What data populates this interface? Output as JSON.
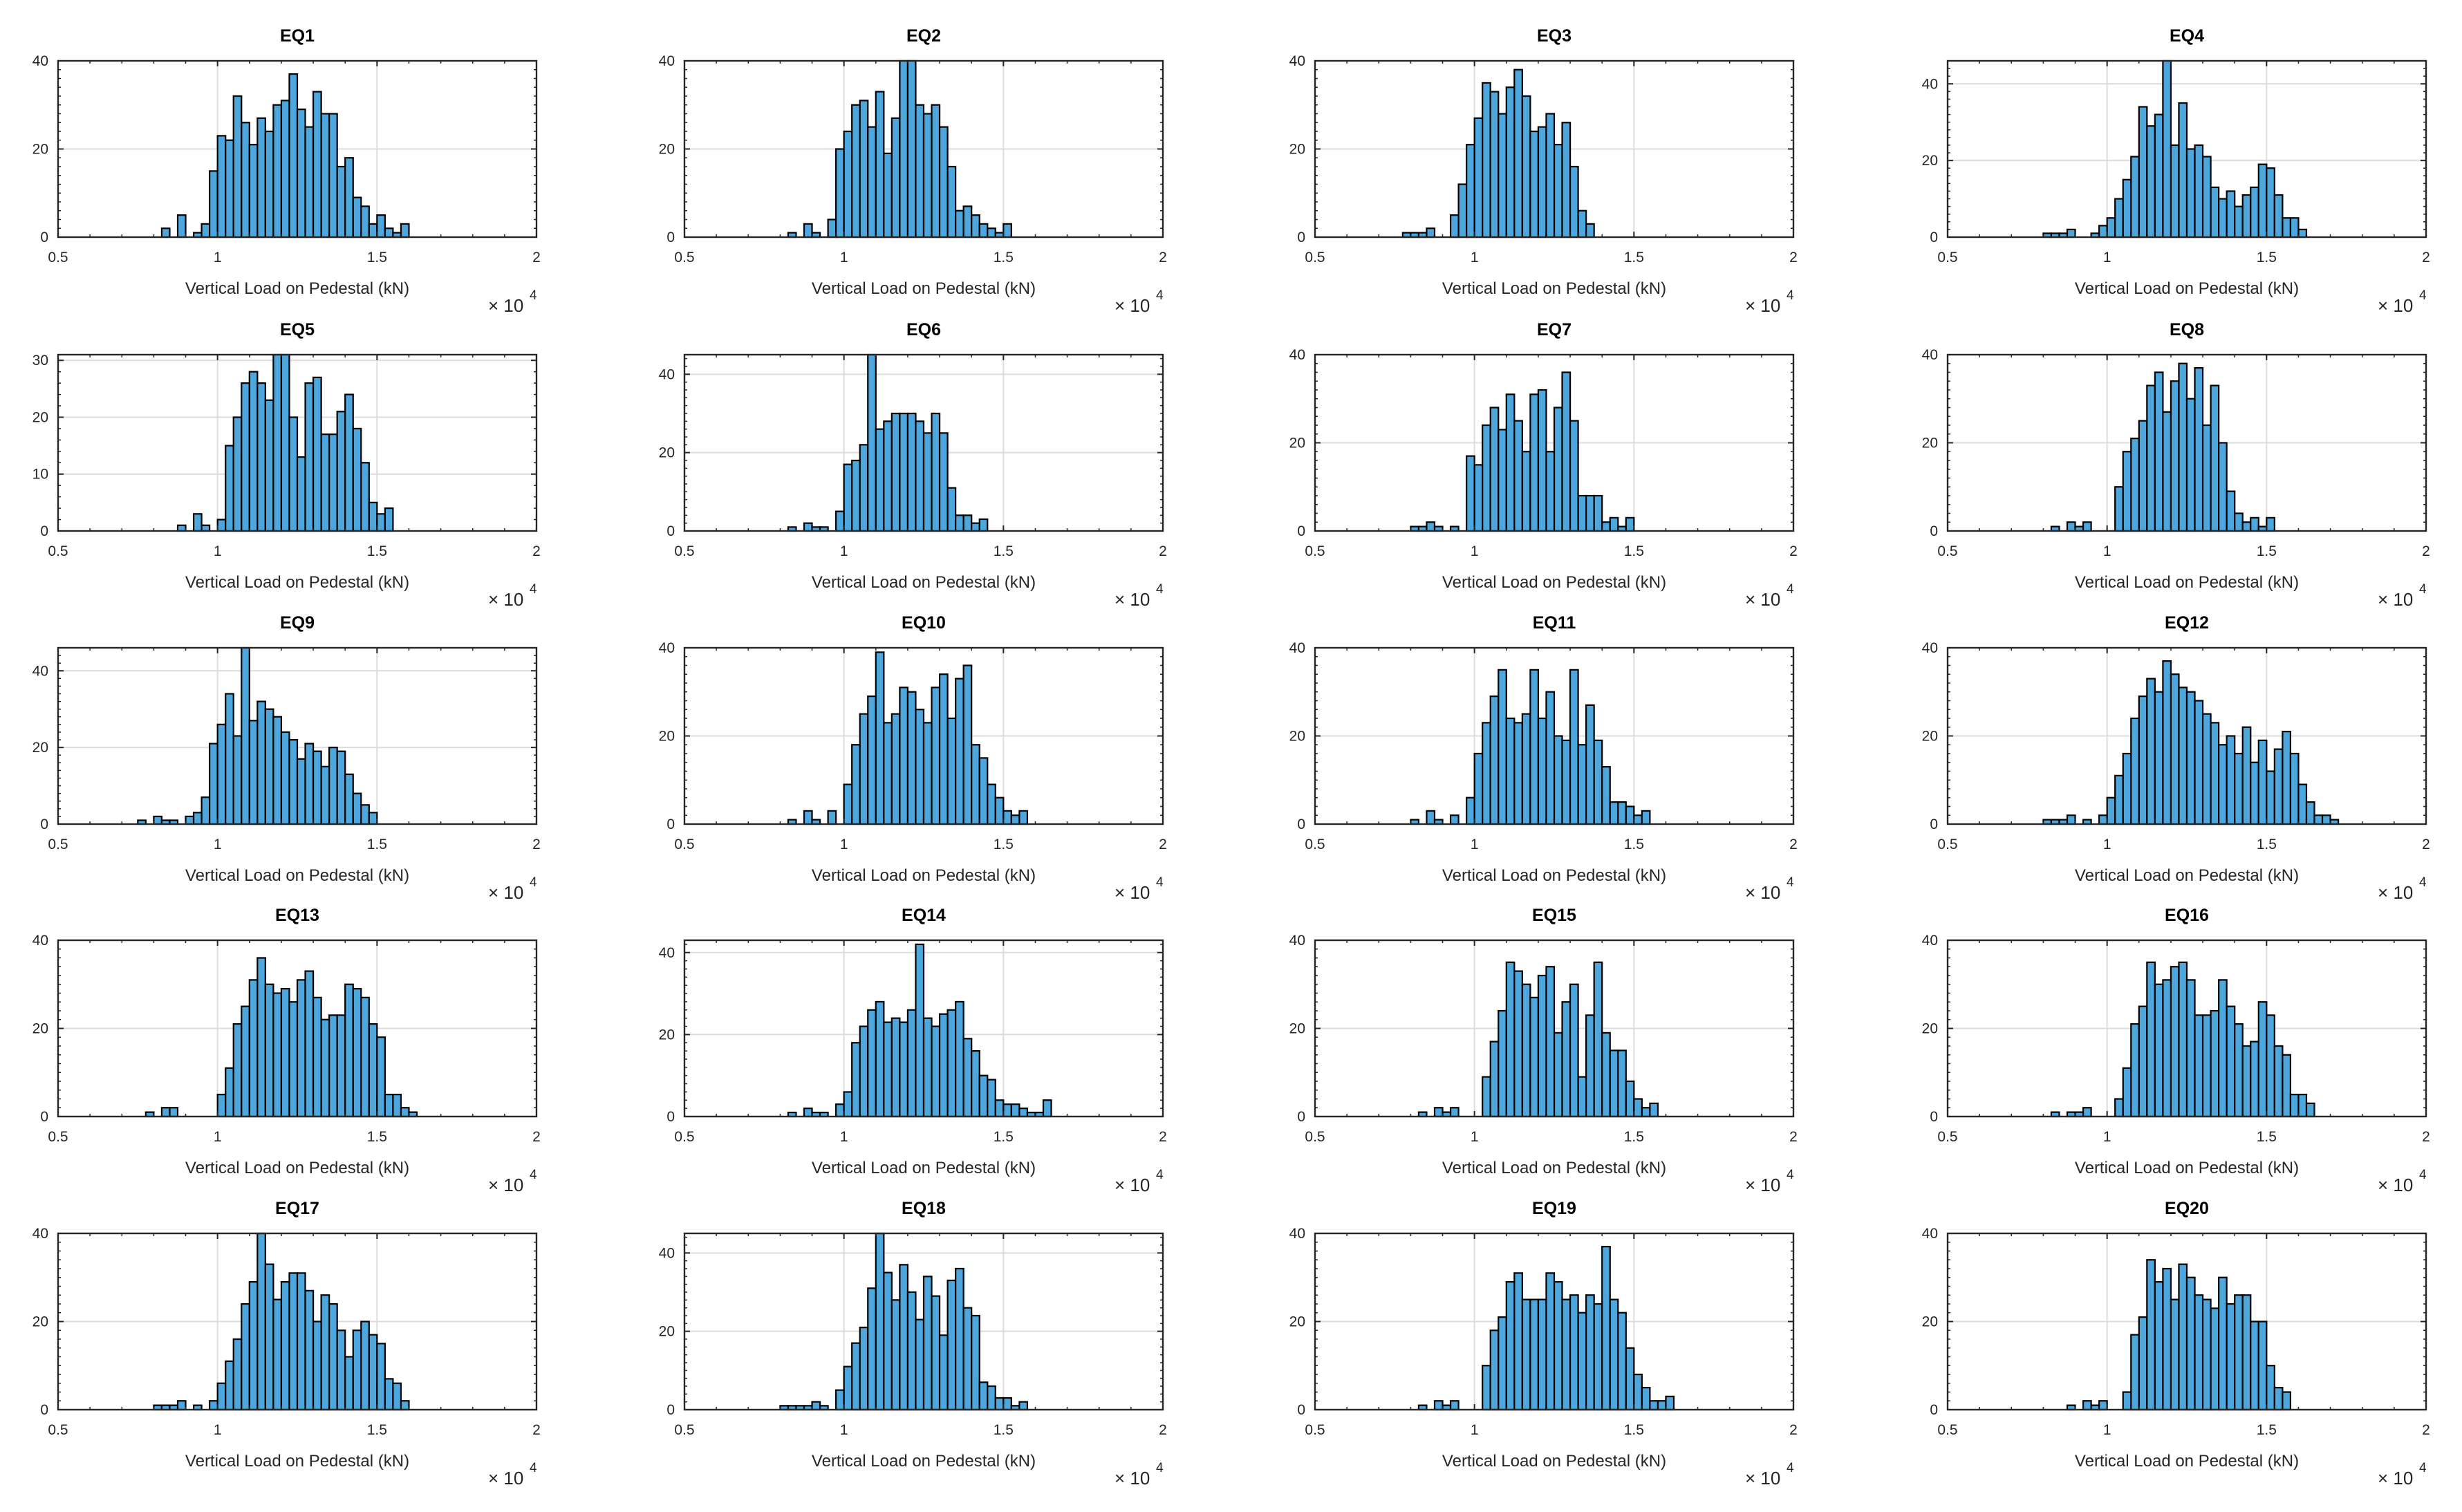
{
  "chart_data": {
    "type": "histogram_grid",
    "xlabel": "Vertical Load on Pedestal (kN)",
    "x_multiplier_base": "× 10",
    "x_multiplier_exponent": "4",
    "xlim": [
      0.5,
      2
    ],
    "x_ticks": [
      "0.5",
      "1",
      "1.5",
      "2"
    ],
    "bin_start": 0.75,
    "bin_width": 0.025,
    "bar_color": "#4da6dc",
    "edge_color": "#000000",
    "grid": true,
    "panels": [
      {
        "title": "EQ1",
        "ylim": [
          0,
          40
        ],
        "y_ticks": [
          "0",
          "20",
          "40"
        ],
        "start": 3,
        "counts": [
          2,
          0,
          5,
          0,
          1,
          3,
          15,
          23,
          22,
          32,
          26,
          21,
          27,
          24,
          30,
          31,
          37,
          29,
          25,
          33,
          28,
          28,
          16,
          18,
          9,
          7,
          3,
          5,
          2,
          1,
          3
        ]
      },
      {
        "title": "EQ2",
        "ylim": [
          0,
          40
        ],
        "y_ticks": [
          "0",
          "20",
          "40"
        ],
        "start": 3,
        "counts": [
          1,
          0,
          3,
          1,
          0,
          4,
          20,
          24,
          30,
          31,
          25,
          33,
          19,
          27,
          40,
          40,
          30,
          28,
          30,
          25,
          16,
          6,
          7,
          5,
          3,
          2,
          1,
          3
        ]
      },
      {
        "title": "EQ3",
        "ylim": [
          0,
          40
        ],
        "y_ticks": [
          "0",
          "20",
          "40"
        ],
        "start": 1,
        "counts": [
          1,
          1,
          1,
          2,
          0,
          0,
          5,
          12,
          21,
          27,
          35,
          33,
          28,
          34,
          38,
          32,
          24,
          25,
          28,
          21,
          26,
          16,
          6,
          3
        ]
      },
      {
        "title": "EQ4",
        "ylim": [
          0,
          46
        ],
        "y_ticks": [
          "0",
          "20",
          "40"
        ],
        "start": 2,
        "counts": [
          1,
          1,
          1,
          2,
          0,
          0,
          1,
          3,
          5,
          10,
          15,
          21,
          34,
          29,
          32,
          46,
          24,
          35,
          23,
          24,
          21,
          13,
          10,
          12,
          8,
          11,
          13,
          19,
          18,
          11,
          5,
          5,
          2
        ]
      },
      {
        "title": "EQ5",
        "ylim": [
          0,
          31
        ],
        "y_ticks": [
          "0",
          "10",
          "20",
          "30"
        ],
        "start": 5,
        "counts": [
          1,
          0,
          3,
          1,
          0,
          2,
          15,
          20,
          26,
          28,
          26,
          23,
          31,
          31,
          20,
          13,
          26,
          27,
          17,
          17,
          21,
          24,
          18,
          12,
          5,
          3,
          4
        ]
      },
      {
        "title": "EQ6",
        "ylim": [
          0,
          45
        ],
        "y_ticks": [
          "0",
          "20",
          "40"
        ],
        "start": 3,
        "counts": [
          1,
          0,
          2,
          1,
          1,
          0,
          5,
          17,
          18,
          22,
          45,
          26,
          28,
          30,
          30,
          30,
          28,
          25,
          30,
          25,
          11,
          4,
          4,
          2,
          3
        ]
      },
      {
        "title": "EQ7",
        "ylim": [
          0,
          40
        ],
        "y_ticks": [
          "0",
          "20",
          "40"
        ],
        "start": 2,
        "counts": [
          1,
          1,
          2,
          1,
          0,
          1,
          0,
          17,
          15,
          24,
          28,
          23,
          31,
          25,
          18,
          31,
          32,
          18,
          28,
          36,
          25,
          8,
          8,
          8,
          2,
          3,
          1,
          3
        ]
      },
      {
        "title": "EQ8",
        "ylim": [
          0,
          40
        ],
        "y_ticks": [
          "0",
          "20",
          "40"
        ],
        "start": 3,
        "counts": [
          1,
          0,
          2,
          1,
          2,
          0,
          0,
          0,
          10,
          18,
          21,
          25,
          33,
          36,
          27,
          34,
          38,
          30,
          37,
          24,
          33,
          20,
          9,
          4,
          2,
          3,
          1,
          3
        ]
      },
      {
        "title": "EQ9",
        "ylim": [
          0,
          46
        ],
        "y_ticks": [
          "0",
          "20",
          "40"
        ],
        "start": 0,
        "counts": [
          1,
          0,
          2,
          1,
          1,
          0,
          2,
          3,
          7,
          21,
          26,
          34,
          23,
          46,
          27,
          32,
          30,
          28,
          24,
          22,
          17,
          21,
          19,
          15,
          20,
          19,
          13,
          8,
          5,
          3
        ]
      },
      {
        "title": "EQ10",
        "ylim": [
          0,
          40
        ],
        "y_ticks": [
          "0",
          "20",
          "40"
        ],
        "start": 3,
        "counts": [
          1,
          0,
          3,
          1,
          0,
          3,
          0,
          9,
          18,
          25,
          29,
          39,
          23,
          25,
          31,
          30,
          26,
          23,
          31,
          34,
          24,
          33,
          36,
          18,
          15,
          9,
          6,
          3,
          2,
          3
        ]
      },
      {
        "title": "EQ11",
        "ylim": [
          0,
          40
        ],
        "y_ticks": [
          "0",
          "20",
          "40"
        ],
        "start": 2,
        "counts": [
          1,
          0,
          3,
          1,
          0,
          2,
          0,
          6,
          16,
          23,
          29,
          35,
          24,
          23,
          25,
          35,
          24,
          30,
          20,
          19,
          35,
          18,
          27,
          19,
          13,
          5,
          5,
          4,
          2,
          3
        ]
      },
      {
        "title": "EQ12",
        "ylim": [
          0,
          40
        ],
        "y_ticks": [
          "0",
          "20",
          "40"
        ],
        "start": 2,
        "counts": [
          1,
          1,
          1,
          2,
          0,
          1,
          0,
          2,
          6,
          11,
          16,
          24,
          29,
          33,
          30,
          37,
          34,
          31,
          30,
          28,
          25,
          23,
          18,
          20,
          16,
          22,
          14,
          19,
          12,
          17,
          21,
          16,
          9,
          5,
          2,
          2,
          1
        ]
      },
      {
        "title": "EQ13",
        "ylim": [
          0,
          40
        ],
        "y_ticks": [
          "0",
          "20",
          "40"
        ],
        "start": 1,
        "counts": [
          1,
          0,
          2,
          2,
          0,
          0,
          0,
          0,
          0,
          5,
          11,
          21,
          25,
          31,
          36,
          30,
          28,
          29,
          26,
          31,
          33,
          27,
          22,
          23,
          23,
          30,
          29,
          27,
          21,
          18,
          5,
          5,
          2,
          1
        ]
      },
      {
        "title": "EQ14",
        "ylim": [
          0,
          43
        ],
        "y_ticks": [
          "0",
          "20",
          "40"
        ],
        "start": 3,
        "counts": [
          1,
          0,
          2,
          1,
          1,
          0,
          3,
          6,
          18,
          22,
          26,
          28,
          23,
          24,
          23,
          26,
          42,
          24,
          22,
          25,
          26,
          28,
          19,
          16,
          10,
          9,
          4,
          3,
          3,
          2,
          1,
          1,
          4
        ]
      },
      {
        "title": "EQ15",
        "ylim": [
          0,
          40
        ],
        "y_ticks": [
          "0",
          "20",
          "40"
        ],
        "start": 3,
        "counts": [
          1,
          0,
          2,
          1,
          2,
          0,
          0,
          0,
          9,
          17,
          24,
          35,
          33,
          30,
          27,
          32,
          34,
          19,
          26,
          30,
          9,
          23,
          35,
          19,
          15,
          15,
          8,
          4,
          2,
          3
        ]
      },
      {
        "title": "EQ16",
        "ylim": [
          0,
          40
        ],
        "y_ticks": [
          "0",
          "20",
          "40"
        ],
        "start": 3,
        "counts": [
          1,
          0,
          1,
          1,
          2,
          0,
          0,
          0,
          4,
          11,
          21,
          25,
          35,
          30,
          31,
          34,
          35,
          31,
          23,
          23,
          24,
          31,
          25,
          21,
          16,
          17,
          26,
          23,
          16,
          14,
          5,
          5,
          3
        ]
      },
      {
        "title": "EQ17",
        "ylim": [
          0,
          40
        ],
        "y_ticks": [
          "0",
          "20",
          "40"
        ],
        "start": 2,
        "counts": [
          1,
          1,
          1,
          2,
          0,
          1,
          0,
          2,
          6,
          11,
          16,
          24,
          29,
          40,
          33,
          25,
          29,
          31,
          31,
          27,
          20,
          26,
          24,
          18,
          12,
          18,
          20,
          17,
          15,
          7,
          6,
          2
        ]
      },
      {
        "title": "EQ18",
        "ylim": [
          0,
          45
        ],
        "y_ticks": [
          "0",
          "20",
          "40"
        ],
        "start": 2,
        "counts": [
          1,
          1,
          1,
          1,
          2,
          1,
          0,
          5,
          11,
          17,
          21,
          31,
          45,
          35,
          28,
          37,
          30,
          23,
          34,
          29,
          19,
          33,
          36,
          26,
          24,
          7,
          6,
          3,
          3,
          1,
          2
        ]
      },
      {
        "title": "EQ19",
        "ylim": [
          0,
          40
        ],
        "y_ticks": [
          "0",
          "20",
          "40"
        ],
        "start": 3,
        "counts": [
          1,
          0,
          2,
          1,
          2,
          0,
          0,
          0,
          10,
          18,
          21,
          29,
          31,
          25,
          25,
          25,
          31,
          29,
          25,
          26,
          22,
          26,
          24,
          37,
          25,
          22,
          14,
          8,
          5,
          2,
          2,
          3
        ]
      },
      {
        "title": "EQ20",
        "ylim": [
          0,
          40
        ],
        "y_ticks": [
          "0",
          "20",
          "40"
        ],
        "start": 5,
        "counts": [
          1,
          0,
          2,
          1,
          2,
          0,
          0,
          4,
          17,
          21,
          34,
          29,
          32,
          25,
          33,
          30,
          26,
          25,
          23,
          30,
          24,
          26,
          26,
          20,
          20,
          10,
          5,
          4
        ]
      }
    ]
  }
}
